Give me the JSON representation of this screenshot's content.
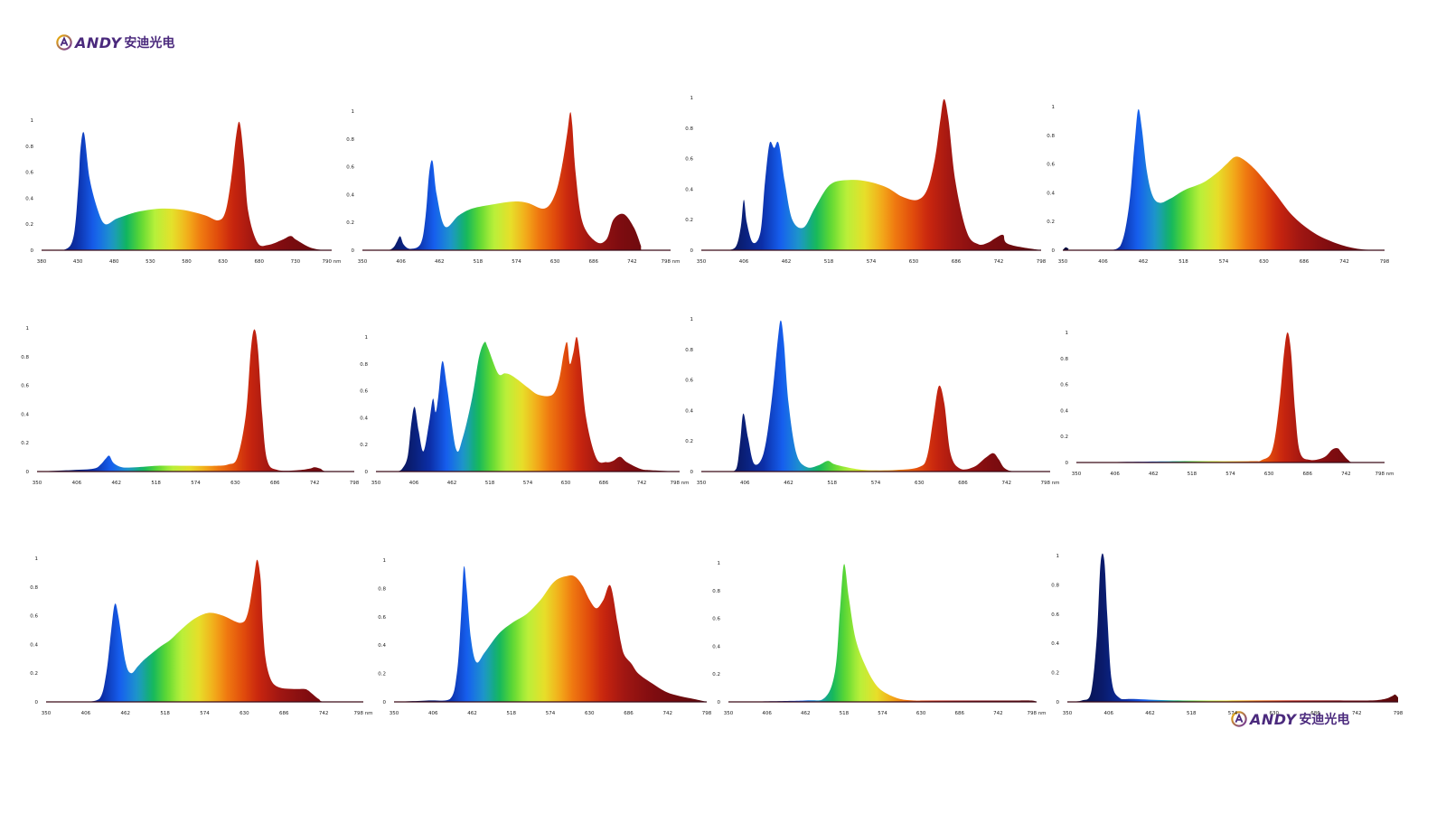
{
  "logo": {
    "brand": "ANDY",
    "cn": "安迪光电"
  },
  "chart_data": [
    {
      "type": "area",
      "xlim": [
        380,
        790
      ],
      "ylim": [
        0,
        1
      ],
      "xticks": [
        "380",
        "430",
        "480",
        "530",
        "580",
        "630",
        "680",
        "730",
        "790 nm"
      ],
      "yticks": [
        "0",
        "0.2",
        "0.4",
        "0.6",
        "0.8",
        "1"
      ],
      "x": [
        380,
        410,
        425,
        432,
        435,
        440,
        448,
        460,
        470,
        485,
        500,
        520,
        550,
        580,
        610,
        630,
        640,
        648,
        655,
        660,
        666,
        672,
        685,
        700,
        720,
        732,
        740,
        760,
        780,
        790
      ],
      "y": [
        0,
        0,
        0.1,
        0.5,
        0.78,
        0.9,
        0.55,
        0.3,
        0.2,
        0.24,
        0.27,
        0.3,
        0.32,
        0.31,
        0.27,
        0.23,
        0.3,
        0.55,
        0.88,
        0.98,
        0.7,
        0.3,
        0.06,
        0.04,
        0.08,
        0.11,
        0.08,
        0.02,
        0,
        0
      ]
    },
    {
      "type": "area",
      "xlim": [
        350,
        798
      ],
      "ylim": [
        0,
        1
      ],
      "xticks": [
        "350",
        "406",
        "462",
        "518",
        "574",
        "630",
        "686",
        "742",
        "798 nm"
      ],
      "yticks": [
        "0",
        "0.2",
        "0.4",
        "0.6",
        "0.8",
        "1"
      ],
      "x": [
        350,
        385,
        395,
        400,
        405,
        410,
        420,
        435,
        442,
        447,
        452,
        458,
        470,
        490,
        510,
        540,
        570,
        590,
        615,
        630,
        640,
        648,
        652,
        655,
        660,
        670,
        690,
        705,
        715,
        730,
        745,
        755
      ],
      "y": [
        0,
        0,
        0.02,
        0.06,
        0.1,
        0.04,
        0.01,
        0.05,
        0.25,
        0.55,
        0.64,
        0.4,
        0.17,
        0.25,
        0.3,
        0.33,
        0.35,
        0.34,
        0.3,
        0.4,
        0.6,
        0.85,
        0.99,
        0.9,
        0.55,
        0.2,
        0.06,
        0.08,
        0.22,
        0.26,
        0.16,
        0.03
      ]
    },
    {
      "type": "area",
      "xlim": [
        350,
        798
      ],
      "ylim": [
        0,
        1
      ],
      "xticks": [
        "350",
        "406",
        "462",
        "518",
        "574",
        "630",
        "686",
        "742",
        "798"
      ],
      "yticks": [
        "0",
        "0.2",
        "0.4",
        "0.6",
        "0.8",
        "1"
      ],
      "x": [
        350,
        380,
        395,
        402,
        406,
        410,
        418,
        428,
        434,
        440,
        446,
        452,
        460,
        470,
        485,
        500,
        520,
        545,
        570,
        595,
        615,
        635,
        648,
        658,
        665,
        670,
        676,
        685,
        700,
        715,
        728,
        738,
        748,
        755,
        798
      ],
      "y": [
        0,
        0,
        0.02,
        0.15,
        0.33,
        0.18,
        0.05,
        0.12,
        0.45,
        0.7,
        0.67,
        0.7,
        0.45,
        0.2,
        0.15,
        0.28,
        0.43,
        0.46,
        0.45,
        0.41,
        0.35,
        0.33,
        0.4,
        0.6,
        0.85,
        0.99,
        0.85,
        0.45,
        0.12,
        0.04,
        0.05,
        0.08,
        0.1,
        0.04,
        0
      ]
    },
    {
      "type": "area",
      "xlim": [
        350,
        798
      ],
      "ylim": [
        0,
        1
      ],
      "xticks": [
        "350",
        "406",
        "462",
        "518",
        "574",
        "630",
        "686",
        "742",
        "798"
      ],
      "yticks": [
        "0",
        "0.2",
        "0.4",
        "0.6",
        "0.8",
        "1"
      ],
      "x": [
        350,
        354,
        358,
        362,
        410,
        430,
        442,
        450,
        455,
        460,
        467,
        475,
        485,
        500,
        520,
        545,
        565,
        578,
        590,
        602,
        620,
        645,
        670,
        700,
        730,
        760,
        790,
        798
      ],
      "y": [
        0,
        0.02,
        0.01,
        0,
        0,
        0.03,
        0.3,
        0.75,
        0.98,
        0.85,
        0.55,
        0.38,
        0.33,
        0.36,
        0.42,
        0.47,
        0.54,
        0.6,
        0.65,
        0.63,
        0.55,
        0.4,
        0.24,
        0.12,
        0.05,
        0.01,
        0,
        0
      ]
    },
    {
      "type": "area",
      "xlim": [
        350,
        798
      ],
      "ylim": [
        0,
        1
      ],
      "xticks": [
        "350",
        "406",
        "462",
        "518",
        "574",
        "630",
        "686",
        "742",
        "798"
      ],
      "yticks": [
        "0",
        "0.2",
        "0.4",
        "0.6",
        "0.8",
        "1"
      ],
      "x": [
        350,
        400,
        430,
        440,
        447,
        452,
        458,
        470,
        490,
        520,
        560,
        600,
        620,
        633,
        645,
        652,
        657,
        662,
        668,
        675,
        690,
        720,
        735,
        742,
        750,
        760,
        798
      ],
      "y": [
        0,
        0.01,
        0.02,
        0.05,
        0.09,
        0.11,
        0.06,
        0.03,
        0.03,
        0.04,
        0.04,
        0.04,
        0.05,
        0.1,
        0.4,
        0.85,
        0.99,
        0.85,
        0.4,
        0.08,
        0.01,
        0.01,
        0.02,
        0.03,
        0.02,
        0,
        0
      ]
    },
    {
      "type": "area",
      "xlim": [
        350,
        798
      ],
      "ylim": [
        0,
        1
      ],
      "xticks": [
        "350",
        "406",
        "462",
        "518",
        "574",
        "630",
        "686",
        "742",
        "798 nm"
      ],
      "yticks": [
        "0",
        "0.2",
        "0.4",
        "0.6",
        "0.8",
        "1"
      ],
      "x": [
        350,
        380,
        390,
        397,
        402,
        407,
        413,
        420,
        428,
        434,
        438,
        442,
        448,
        455,
        468,
        478,
        492,
        502,
        510,
        515,
        530,
        540,
        548,
        560,
        575,
        590,
        610,
        620,
        627,
        632,
        636,
        641,
        646,
        651,
        660,
        675,
        690,
        700,
        710,
        720,
        740,
        755,
        798
      ],
      "y": [
        0,
        0,
        0.03,
        0.12,
        0.35,
        0.48,
        0.3,
        0.15,
        0.35,
        0.54,
        0.44,
        0.56,
        0.82,
        0.62,
        0.17,
        0.25,
        0.55,
        0.85,
        0.96,
        0.92,
        0.73,
        0.73,
        0.72,
        0.68,
        0.62,
        0.57,
        0.57,
        0.68,
        0.88,
        0.96,
        0.8,
        0.88,
        1.0,
        0.85,
        0.4,
        0.1,
        0.07,
        0.08,
        0.11,
        0.07,
        0.02,
        0.01,
        0
      ]
    },
    {
      "type": "area",
      "xlim": [
        350,
        798
      ],
      "ylim": [
        0,
        1
      ],
      "xticks": [
        "350",
        "406",
        "462",
        "518",
        "574",
        "630",
        "686",
        "742",
        "798 nm"
      ],
      "yticks": [
        "0",
        "0.2",
        "0.4",
        "0.6",
        "0.8",
        "1"
      ],
      "x": [
        350,
        385,
        395,
        400,
        404,
        410,
        418,
        430,
        440,
        448,
        452,
        456,
        462,
        472,
        485,
        500,
        512,
        520,
        535,
        560,
        600,
        630,
        640,
        648,
        655,
        662,
        670,
        682,
        700,
        715,
        725,
        732,
        740,
        755,
        798
      ],
      "y": [
        0,
        0,
        0.02,
        0.2,
        0.38,
        0.22,
        0.05,
        0.12,
        0.45,
        0.85,
        0.99,
        0.85,
        0.45,
        0.12,
        0.03,
        0.04,
        0.07,
        0.05,
        0.03,
        0.01,
        0.01,
        0.03,
        0.1,
        0.35,
        0.56,
        0.45,
        0.12,
        0.02,
        0.03,
        0.09,
        0.12,
        0.08,
        0.02,
        0,
        0
      ]
    },
    {
      "type": "area",
      "xlim": [
        350,
        798
      ],
      "ylim": [
        0,
        1
      ],
      "xticks": [
        "350",
        "406",
        "462",
        "518",
        "574",
        "630",
        "686",
        "742",
        "798 nm"
      ],
      "yticks": [
        "0",
        "0.2",
        "0.4",
        "0.6",
        "0.8",
        "1"
      ],
      "x": [
        350,
        500,
        600,
        620,
        635,
        645,
        652,
        657,
        662,
        668,
        675,
        690,
        710,
        722,
        730,
        735,
        745,
        755,
        798
      ],
      "y": [
        0,
        0.01,
        0.01,
        0.02,
        0.1,
        0.45,
        0.85,
        1.0,
        0.85,
        0.4,
        0.08,
        0.02,
        0.04,
        0.1,
        0.11,
        0.08,
        0.02,
        0,
        0
      ]
    },
    {
      "type": "area",
      "xlim": [
        350,
        798
      ],
      "ylim": [
        0,
        1
      ],
      "xticks": [
        "350",
        "406",
        "462",
        "518",
        "574",
        "630",
        "686",
        "742",
        "798 nm"
      ],
      "yticks": [
        "0",
        "0.2",
        "0.4",
        "0.6",
        "0.8",
        "1"
      ],
      "x": [
        350,
        400,
        425,
        435,
        442,
        447,
        452,
        462,
        470,
        480,
        490,
        510,
        525,
        540,
        560,
        580,
        600,
        625,
        635,
        643,
        648,
        653,
        656,
        660,
        668,
        680,
        700,
        715,
        720,
        725,
        735,
        745,
        798
      ],
      "y": [
        0,
        0,
        0.02,
        0.2,
        0.5,
        0.68,
        0.6,
        0.28,
        0.2,
        0.25,
        0.3,
        0.38,
        0.43,
        0.5,
        0.58,
        0.62,
        0.6,
        0.55,
        0.62,
        0.85,
        0.99,
        0.85,
        0.55,
        0.3,
        0.15,
        0.1,
        0.09,
        0.09,
        0.08,
        0.06,
        0.02,
        0,
        0
      ]
    },
    {
      "type": "area",
      "xlim": [
        350,
        798
      ],
      "ylim": [
        0,
        1
      ],
      "xticks": [
        "350",
        "406",
        "462",
        "518",
        "574",
        "630",
        "686",
        "742",
        "798"
      ],
      "yticks": [
        "0",
        "0.2",
        "0.4",
        "0.6",
        "0.8",
        "1"
      ],
      "x": [
        350,
        400,
        430,
        440,
        446,
        450,
        454,
        460,
        468,
        480,
        500,
        520,
        540,
        560,
        580,
        600,
        610,
        620,
        630,
        640,
        650,
        660,
        670,
        675,
        680,
        690,
        700,
        720,
        740,
        760,
        780,
        798
      ],
      "y": [
        0,
        0.01,
        0.02,
        0.2,
        0.6,
        0.95,
        0.8,
        0.45,
        0.28,
        0.35,
        0.48,
        0.56,
        0.62,
        0.72,
        0.85,
        0.89,
        0.88,
        0.82,
        0.72,
        0.66,
        0.72,
        0.82,
        0.56,
        0.42,
        0.33,
        0.27,
        0.2,
        0.13,
        0.07,
        0.04,
        0.02,
        0
      ]
    },
    {
      "type": "area",
      "xlim": [
        350,
        798
      ],
      "ylim": [
        0,
        1
      ],
      "xticks": [
        "350",
        "406",
        "462",
        "518",
        "574",
        "630",
        "686",
        "742",
        "798 nm"
      ],
      "yticks": [
        "0",
        "0.2",
        "0.4",
        "0.6",
        "0.8",
        "1"
      ],
      "x": [
        350,
        460,
        490,
        505,
        512,
        518,
        525,
        535,
        550,
        565,
        580,
        600,
        620,
        640,
        700,
        760,
        790,
        798
      ],
      "y": [
        0,
        0.01,
        0.03,
        0.22,
        0.65,
        0.99,
        0.75,
        0.45,
        0.25,
        0.12,
        0.06,
        0.02,
        0.01,
        0.01,
        0.01,
        0.01,
        0.01,
        0
      ]
    },
    {
      "type": "area",
      "xlim": [
        350,
        798
      ],
      "ylim": [
        0,
        1
      ],
      "xticks": [
        "350",
        "406",
        "462",
        "518",
        "574",
        "630",
        "686",
        "742",
        "798"
      ],
      "yticks": [
        "0",
        "0.2",
        "0.4",
        "0.6",
        "0.8",
        "1"
      ],
      "x": [
        350,
        370,
        382,
        390,
        395,
        400,
        404,
        410,
        420,
        440,
        500,
        600,
        700,
        760,
        780,
        790,
        794,
        798
      ],
      "y": [
        0,
        0.01,
        0.06,
        0.45,
        0.95,
        0.97,
        0.6,
        0.15,
        0.03,
        0.02,
        0.01,
        0.01,
        0.01,
        0.01,
        0.02,
        0.04,
        0.05,
        0.03
      ]
    }
  ]
}
